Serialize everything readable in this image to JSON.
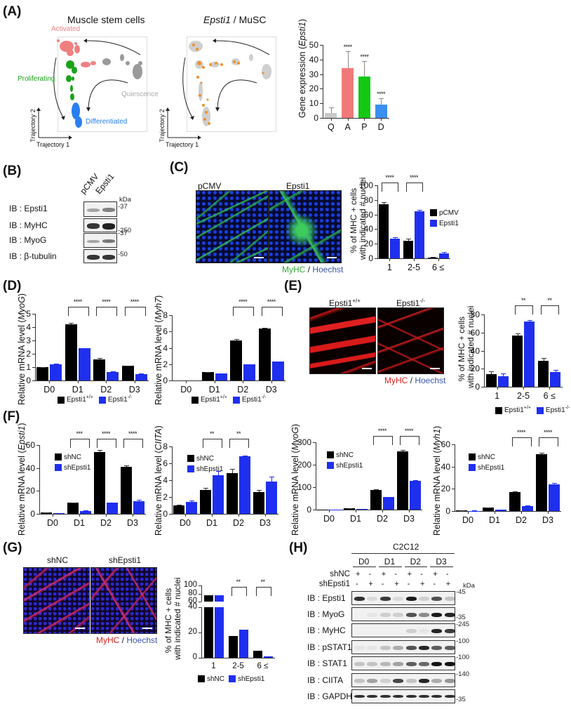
{
  "panels": {
    "A": {
      "label": "(A)",
      "umap1_title": "Muscle stem cells",
      "umap2_title_italic": "Epsti1",
      "umap2_title_rest": " / MuSC",
      "cluster_labels": {
        "activated": "Activated",
        "proliferating": "Proliferating",
        "quiescence": "Quiescence",
        "differentiated": "Differentiated"
      },
      "cluster_colors": {
        "activated": "#f08080",
        "proliferating": "#1aa31a",
        "quiescence": "#9a9a9a",
        "differentiated": "#2a7ff0",
        "expr": "#f0902a",
        "bg": "#cfcfcf"
      },
      "axis_x": "Trajectory 1",
      "axis_y": "Trajectory 2"
    },
    "B": {
      "label": "(B)",
      "lanes": [
        "pCMV",
        "Epsti1"
      ],
      "kda_label": "kDa",
      "rows": [
        {
          "ib": "IB : Epsti1",
          "kda": "37"
        },
        {
          "ib": "IB : MyHC",
          "kda": "250"
        },
        {
          "ib": "IB : MyoG",
          "kda": "37"
        },
        {
          "ib": "IB : β-tubulin",
          "kda": "50"
        }
      ]
    },
    "C": {
      "label": "(C)",
      "images": [
        "pCMV",
        "Epsti1"
      ],
      "stain_a": "MyHC",
      "stain_sep": " / ",
      "stain_b": "Hoechst"
    },
    "D": {
      "label": "(D)"
    },
    "E": {
      "label": "(E)",
      "images": [
        "Epsti1",
        "Epsti1"
      ],
      "image_sups": [
        "+/+",
        "-/-"
      ],
      "stain_a": "MyHC",
      "stain_sep": " / ",
      "stain_b": "Hoechst"
    },
    "F": {
      "label": "(F)"
    },
    "G": {
      "label": "(G)",
      "images": [
        "shNC",
        "shEpsti1"
      ],
      "stain_a": "MyHC",
      "stain_sep": " / ",
      "stain_b": "Hoechst"
    },
    "H": {
      "label": "(H)",
      "cell_line": "C2C12",
      "days": [
        "D0",
        "D1",
        "D2",
        "D3"
      ],
      "row_shNC_label": "shNC",
      "row_shEpsti1_label": "shEpsti1",
      "shNC": [
        "+",
        "-",
        "+",
        "-",
        "+",
        "-",
        "+",
        "-"
      ],
      "shEpsti1": [
        "-",
        "+",
        "-",
        "+",
        "-",
        "+",
        "-",
        "+"
      ],
      "kda_label": "kDa",
      "rows": [
        {
          "ib": "IB : Epsti1",
          "kda": "45"
        },
        {
          "ib": "IB : MyoG",
          "kda": "35"
        },
        {
          "ib": "IB : MyHC",
          "kda": "245"
        },
        {
          "ib": "IB : pSTAT1",
          "kda": "100"
        },
        {
          "ib": "IB : STAT1",
          "kda": "100"
        },
        {
          "ib": "IB : CIITA",
          "kda": "140"
        },
        {
          "ib": "IB : GAPDH",
          "kda": "35"
        }
      ]
    }
  },
  "colors": {
    "black": "#000000",
    "blue": "#1f2ff0",
    "grey": "#c8c8c8",
    "salmon": "#f07a7a",
    "green": "#14c814",
    "lightblue": "#3a8ff0"
  },
  "chart_data": [
    {
      "id": "A-bar",
      "type": "bar",
      "title": "",
      "ylabel_prefix": "Gene expression (",
      "ylabel_italic": "Epsti1",
      "ylabel_suffix": ")",
      "xlabel": "",
      "categories": [
        "Q",
        "A",
        "P",
        "D"
      ],
      "values": [
        3.5,
        34,
        28.5,
        9
      ],
      "errors": [
        3.5,
        11.5,
        10.5,
        4.5
      ],
      "bar_colors": [
        "#c8c8c8",
        "#f07a7a",
        "#14c814",
        "#3a8ff0"
      ],
      "significance": [
        "",
        "****",
        "****",
        "****"
      ],
      "yticks": [
        "0",
        "10",
        "20",
        "30",
        "40",
        "50"
      ],
      "ylim": [
        0,
        50
      ]
    },
    {
      "id": "C-bar",
      "type": "bar",
      "ylabel_line1": "% of MHC + cells",
      "ylabel_line2": "with indicated  #  nuclei",
      "categories": [
        "1",
        "2-5",
        "6 ≤"
      ],
      "series": [
        {
          "name": "pCMV",
          "values": [
            74,
            24,
            1
          ],
          "errors": [
            3,
            3,
            0.5
          ]
        },
        {
          "name": "Epsti1",
          "values": [
            27,
            64,
            7
          ],
          "errors": [
            2,
            2,
            1.5
          ]
        }
      ],
      "significance": [
        "****",
        "****",
        ""
      ],
      "yticks": [
        "0",
        "20",
        "40",
        "60",
        "80",
        "100"
      ],
      "ylim": [
        0,
        100
      ],
      "legend_position": "right"
    },
    {
      "id": "D-MyoG",
      "type": "bar",
      "ylabel_prefix": "Relative mRNA level (",
      "ylabel_italic": "MyoG",
      "ylabel_suffix": ")",
      "categories": [
        "D0",
        "D1",
        "D2",
        "D3"
      ],
      "series": [
        {
          "name": "Epsti1 +/+",
          "values": [
            1.0,
            4.2,
            1.6,
            1.1
          ],
          "errors": [
            0.02,
            0.1,
            0.08,
            0.03
          ]
        },
        {
          "name": "Epsti1 -/-",
          "values": [
            1.2,
            2.4,
            0.65,
            0.5
          ],
          "errors": [
            0.05,
            0.03,
            0.02,
            0.02
          ]
        }
      ],
      "significance": [
        "",
        "****",
        "****",
        "****"
      ],
      "yticks": [
        "0",
        "1",
        "2",
        "3",
        "4",
        "5"
      ],
      "ylim": [
        0,
        5
      ],
      "legend_name1": "Epsti1",
      "legend_sup1": "+/+",
      "legend_name2": "Epsti1",
      "legend_sup2": "-/-"
    },
    {
      "id": "D-Myh7",
      "type": "bar",
      "ylabel_prefix": "Relative mRNA level (",
      "ylabel_italic": "Myh7",
      "ylabel_suffix": ")",
      "categories": [
        "D0",
        "D1",
        "D2",
        "D3"
      ],
      "series": [
        {
          "name": "Epsti1 +/+",
          "values": [
            0,
            1.0,
            4.9,
            6.4
          ],
          "errors": [
            0,
            0.03,
            0.15,
            0.05
          ]
        },
        {
          "name": "Epsti1 -/-",
          "values": [
            0,
            0.85,
            1.95,
            2.3
          ],
          "errors": [
            0,
            0.02,
            0.03,
            0.05
          ]
        }
      ],
      "significance": [
        "",
        "",
        "****",
        "****"
      ],
      "yticks": [
        "0",
        "2",
        "4",
        "6",
        "8"
      ],
      "ylim": [
        0,
        8
      ],
      "legend_name1": "Epsti1",
      "legend_sup1": "+/+",
      "legend_name2": "Epsti1",
      "legend_sup2": "-/-"
    },
    {
      "id": "E-bar",
      "type": "bar",
      "ylabel_line1": "% of MHC + cells",
      "ylabel_line2": "with indicated  #  nuclei",
      "categories": [
        "1",
        "2-5",
        "6 ≤"
      ],
      "series": [
        {
          "name": "Epsti1 +/+",
          "values": [
            14,
            57,
            29
          ],
          "errors": [
            3,
            2,
            2.5
          ]
        },
        {
          "name": "Epsti1 -/-",
          "values": [
            12,
            72,
            16
          ],
          "errors": [
            2.5,
            2,
            2.5
          ]
        }
      ],
      "significance": [
        "",
        "**",
        "**"
      ],
      "yticks": [
        "0",
        "20",
        "40",
        "60",
        "80"
      ],
      "ylim": [
        0,
        80
      ],
      "legend_name1": "Epsti1",
      "legend_sup1": "+/+",
      "legend_name2": "Epsti1",
      "legend_sup2": "-/-"
    },
    {
      "id": "F-Epsti1",
      "type": "bar",
      "ylabel_prefix": "Relative mRNA level (",
      "ylabel_italic": "Epsti1",
      "ylabel_suffix": ")",
      "categories": [
        "D0",
        "D1",
        "D2",
        "D3"
      ],
      "series": [
        {
          "name": "shNC",
          "values": [
            1,
            9.5,
            54,
            41
          ],
          "errors": [
            0.2,
            0.5,
            2,
            1.5
          ]
        },
        {
          "name": "shEpsti1",
          "values": [
            0.5,
            2.5,
            9.5,
            11
          ],
          "errors": [
            0.1,
            0.5,
            0.3,
            1.2
          ]
        }
      ],
      "significance": [
        "",
        "***",
        "****",
        "****"
      ],
      "yticks": [
        "0",
        "20",
        "40",
        "60"
      ],
      "ylim": [
        0,
        60
      ]
    },
    {
      "id": "F-CIITA",
      "type": "bar",
      "ylabel_prefix": "Relative mRNA level (",
      "ylabel_italic": "CIITA",
      "ylabel_suffix": ")",
      "categories": [
        "D0",
        "D1",
        "D2",
        "D3"
      ],
      "series": [
        {
          "name": "shNC",
          "values": [
            1.0,
            2.8,
            4.8,
            2.6
          ],
          "errors": [
            0.1,
            0.25,
            0.55,
            0.2
          ]
        },
        {
          "name": "shEpsti1",
          "values": [
            1.4,
            4.6,
            6.8,
            3.85
          ],
          "errors": [
            0.15,
            0.5,
            0.15,
            0.55
          ]
        }
      ],
      "significance": [
        "",
        "**",
        "**",
        ""
      ],
      "yticks": [
        "0",
        "2",
        "4",
        "6",
        "8"
      ],
      "ylim": [
        0,
        8
      ]
    },
    {
      "id": "F-MyoG",
      "type": "bar",
      "ylabel_prefix": "Relative mRNA level (",
      "ylabel_italic": "MyoG",
      "ylabel_suffix": ")",
      "categories": [
        "D0",
        "D1",
        "D2",
        "D3"
      ],
      "series": [
        {
          "name": "shNC",
          "values": [
            1,
            6,
            88,
            260
          ],
          "errors": [
            0,
            1,
            2,
            6
          ]
        },
        {
          "name": "shEpsti1",
          "values": [
            0.5,
            3,
            55,
            128
          ],
          "errors": [
            0,
            0.5,
            2,
            3
          ]
        }
      ],
      "significance": [
        "",
        "",
        "****",
        "****"
      ],
      "yticks": [
        "0",
        "100",
        "200",
        "300"
      ],
      "ylim": [
        0,
        300
      ]
    },
    {
      "id": "F-Myh1",
      "type": "bar",
      "ylabel_prefix": "Relative mRNA level (",
      "ylabel_italic": "Myh1",
      "ylabel_suffix": ")",
      "categories": [
        "D0",
        "D1",
        "D2",
        "D3"
      ],
      "series": [
        {
          "name": "shNC",
          "values": [
            0.8,
            3,
            17,
            51
          ],
          "errors": [
            0.1,
            0.2,
            0.8,
            1.2
          ]
        },
        {
          "name": "shEpsti1",
          "values": [
            0.3,
            1,
            4.5,
            24
          ],
          "errors": [
            0.05,
            0.1,
            0.3,
            1
          ]
        }
      ],
      "significance": [
        "",
        "",
        "****",
        "****"
      ],
      "yticks": [
        "0",
        "20",
        "40",
        "60"
      ],
      "ylim": [
        0,
        60
      ]
    },
    {
      "id": "G-bar",
      "type": "bar",
      "ylabel_line1": "% of MHC + cells",
      "ylabel_line2": "with indicated  #  nuclei",
      "categories": [
        "1",
        "2-5",
        "6 ≤"
      ],
      "series": [
        {
          "name": "shNC",
          "values": [
            76,
            17.5,
            5.5
          ],
          "errors": [
            0.5,
            1,
            0.8
          ]
        },
        {
          "name": "shEpsti1",
          "values": [
            76,
            22,
            1
          ],
          "errors": [
            1.5,
            1.2,
            0.3
          ]
        }
      ],
      "significance": [
        "",
        "**",
        "**"
      ],
      "yticks_low": [
        "0",
        "20",
        "40"
      ],
      "yticks_high": [
        "60",
        "80",
        "100"
      ],
      "axis_break": [
        40,
        60
      ],
      "ylim": [
        0,
        100
      ]
    }
  ]
}
